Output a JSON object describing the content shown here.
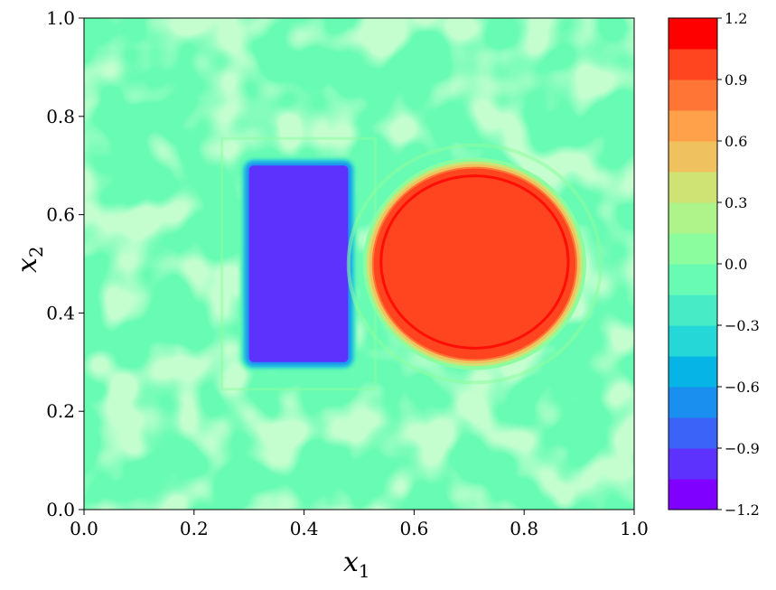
{
  "chart_data": {
    "type": "heatmap",
    "xlabel": "x",
    "xlabel_sub": "1",
    "ylabel": "x",
    "ylabel_sub": "2",
    "xlim": [
      0.0,
      1.0
    ],
    "ylim": [
      0.0,
      1.0
    ],
    "x_ticks": [
      "0.0",
      "0.2",
      "0.4",
      "0.6",
      "0.8",
      "1.0"
    ],
    "y_ticks": [
      "0.0",
      "0.2",
      "0.4",
      "0.6",
      "0.8",
      "1.0"
    ],
    "background_value": 0.0,
    "regions": [
      {
        "shape": "rectangle",
        "x": [
          0.3,
          0.48
        ],
        "y": [
          0.3,
          0.7
        ],
        "value": -1.0
      },
      {
        "shape": "ellipse",
        "center": [
          0.71,
          0.5
        ],
        "radius": [
          0.18,
          0.19
        ],
        "value": 1.0
      }
    ],
    "colorbar": {
      "range": [
        -1.2,
        1.2
      ],
      "ticks": [
        "1.2",
        "0.9",
        "0.6",
        "0.3",
        "0.0",
        "−0.3",
        "−0.6",
        "−0.9",
        "−1.2"
      ],
      "levels": [
        "#7f00ff",
        "#5d32fd",
        "#3c63f8",
        "#1b8ff0",
        "#06b5e6",
        "#25d8d7",
        "#47ecc6",
        "#68fbb3",
        "#8cfd9f",
        "#aef48a",
        "#cfe274",
        "#f0c25f",
        "#ffa04a",
        "#ff7535",
        "#ff4520",
        "#ff0000"
      ]
    }
  }
}
